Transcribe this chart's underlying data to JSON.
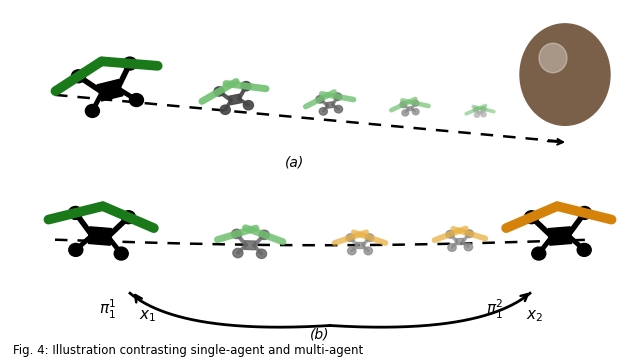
{
  "bg_color": "#ffffff",
  "title_a": "(a)",
  "title_b": "(b)",
  "caption": "Fig. 4: Illustration contrasting single-agent and multi-agent",
  "green_dark": "#1a7a1a",
  "green_light": "#70c070",
  "orange_dark": "#d4820a",
  "orange_light": "#e8b040",
  "black": "#000000",
  "gray1": "#444444",
  "gray2": "#666666",
  "gray3": "#888888",
  "gray4": "#aaaaaa",
  "sphere_color": "#7a6048",
  "sphere_highlight": "#c0a888"
}
